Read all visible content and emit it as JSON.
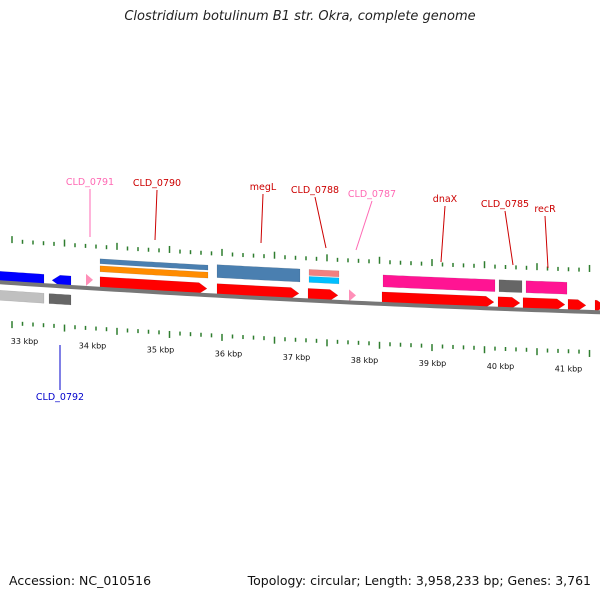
{
  "title": "Clostridium botulinum B1 str. Okra, complete genome",
  "footer": {
    "accession": "Accession: NC_010516",
    "summary": "Topology: circular; Length: 3,958,233 bp; Genes: 3,761"
  },
  "colors": {
    "backbone": "#777777",
    "tick": "#2e7d2e",
    "cds_red": "#ff0000",
    "steel": "#4a7fb0",
    "orange": "#ff8c00",
    "pink": "#ff1493",
    "light_pink": "#ff8fb8",
    "cyan": "#00bfff",
    "salmon": "#f08080",
    "gray": "#666666",
    "light_gray": "#c0c0c0",
    "blue": "#0000ff",
    "label_red": "#cc0000",
    "label_pink": "#ff69b4",
    "label_blue": "#0000cc"
  },
  "scale": {
    "unit": "kbp",
    "labels": [
      {
        "kbp": 33,
        "text": "33 kbp"
      },
      {
        "kbp": 34,
        "text": "34 kbp"
      },
      {
        "kbp": 35,
        "text": "35 kbp"
      },
      {
        "kbp": 36,
        "text": "36 kbp"
      },
      {
        "kbp": 37,
        "text": "37 kbp"
      },
      {
        "kbp": 38,
        "text": "38 kbp"
      },
      {
        "kbp": 39,
        "text": "39 kbp"
      },
      {
        "kbp": 40,
        "text": "40 kbp"
      },
      {
        "kbp": 41,
        "text": "41 kbp"
      }
    ]
  },
  "labels": [
    {
      "text": "CLD_0791",
      "color_key": "label_pink"
    },
    {
      "text": "CLD_0790",
      "color_key": "label_red"
    },
    {
      "text": "megL",
      "color_key": "label_red"
    },
    {
      "text": "CLD_0788",
      "color_key": "label_red"
    },
    {
      "text": "CLD_0787",
      "color_key": "label_pink"
    },
    {
      "text": "dnaX",
      "color_key": "label_red"
    },
    {
      "text": "CLD_0785",
      "color_key": "label_red"
    },
    {
      "text": "recR",
      "color_key": "label_red"
    },
    {
      "text": "CLD_0792",
      "color_key": "label_blue"
    }
  ]
}
